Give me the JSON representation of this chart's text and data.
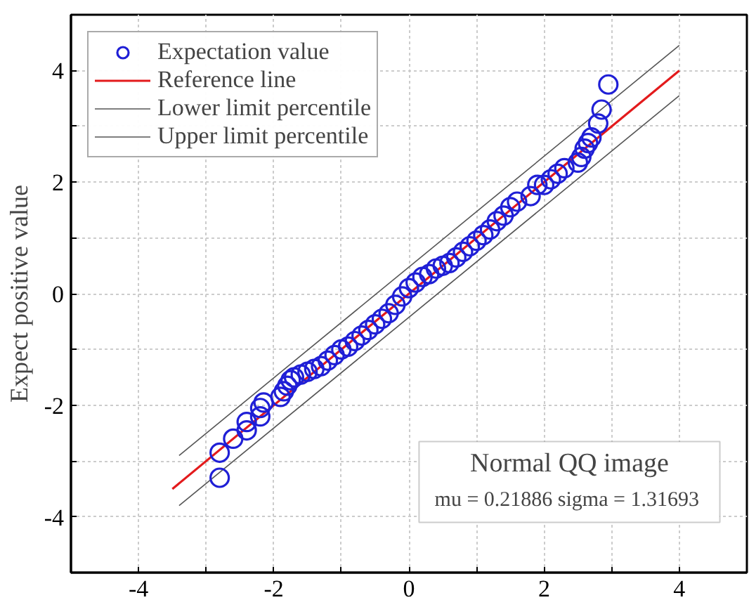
{
  "chart_data": {
    "type": "scatter",
    "ylabel": "Expect positive value",
    "xlim": [
      -5,
      5
    ],
    "ylim": [
      -5,
      5
    ],
    "xticks": [
      {
        "value": -5,
        "label": null
      },
      -4,
      {
        "value": -3,
        "label": null
      },
      -2,
      {
        "value": -1,
        "label": null
      },
      0,
      {
        "value": 1,
        "label": null
      },
      2,
      {
        "value": 3,
        "label": null
      },
      4,
      {
        "value": 5,
        "label": null
      }
    ],
    "yticks": [
      {
        "value": -5,
        "label": null
      },
      -4,
      {
        "value": -3,
        "label": null
      },
      -2,
      {
        "value": -1,
        "label": null
      },
      0,
      {
        "value": 1,
        "label": null
      },
      2,
      {
        "value": 3,
        "label": null
      },
      4,
      {
        "value": 5,
        "label": null
      }
    ],
    "grid": true,
    "legend": "top left",
    "annotations": [
      "Normal QQ image",
      "mu = 0.21886  sigma = 1.31693"
    ],
    "series": [
      {
        "name": "Expectation value",
        "marker": "circle",
        "color": "#1f1fd6",
        "x": [
          -2.8,
          -2.8,
          -2.6,
          -2.4,
          -2.4,
          -2.2,
          -2.2,
          -2.15,
          -1.9,
          -1.85,
          -1.8,
          -1.75,
          -1.7,
          -1.6,
          -1.5,
          -1.4,
          -1.3,
          -1.2,
          -1.1,
          -1.0,
          -0.9,
          -0.8,
          -0.7,
          -0.6,
          -0.5,
          -0.4,
          -0.3,
          -0.2,
          -0.1,
          0.0,
          0.1,
          0.2,
          0.3,
          0.4,
          0.5,
          0.6,
          0.7,
          0.8,
          0.9,
          1.0,
          1.1,
          1.2,
          1.3,
          1.4,
          1.5,
          1.6,
          1.8,
          1.9,
          2.0,
          2.1,
          2.2,
          2.3,
          2.5,
          2.55,
          2.6,
          2.65,
          2.7,
          2.8,
          2.85,
          2.95
        ],
        "values": [
          -3.3,
          -2.85,
          -2.6,
          -2.45,
          -2.3,
          -2.2,
          -2.05,
          -1.95,
          -1.85,
          -1.75,
          -1.65,
          -1.55,
          -1.5,
          -1.45,
          -1.4,
          -1.35,
          -1.3,
          -1.2,
          -1.1,
          -1.0,
          -0.95,
          -0.85,
          -0.75,
          -0.65,
          -0.55,
          -0.45,
          -0.35,
          -0.2,
          -0.05,
          0.1,
          0.2,
          0.3,
          0.35,
          0.45,
          0.5,
          0.55,
          0.65,
          0.75,
          0.85,
          0.95,
          1.05,
          1.15,
          1.3,
          1.4,
          1.55,
          1.65,
          1.75,
          1.95,
          1.95,
          2.05,
          2.15,
          2.25,
          2.35,
          2.45,
          2.6,
          2.7,
          2.8,
          3.05,
          3.3,
          3.75
        ]
      },
      {
        "name": "Reference line",
        "type": "line",
        "marker": "none",
        "line_style": "solid",
        "color": "#e31a1c",
        "x": [
          -3.5,
          4
        ],
        "values": [
          -3.5,
          4
        ]
      },
      {
        "name": "Lower limit percentile",
        "type": "line",
        "marker": "none",
        "line_style": "solid",
        "color": "#555555",
        "x": [
          -3.4,
          4
        ],
        "values": [
          -3.8,
          3.55
        ]
      },
      {
        "name": "Upper limit percentile",
        "type": "line",
        "marker": "none",
        "line_style": "solid",
        "color": "#555555",
        "x": [
          -3.4,
          4
        ],
        "values": [
          -2.9,
          4.45
        ]
      }
    ]
  }
}
